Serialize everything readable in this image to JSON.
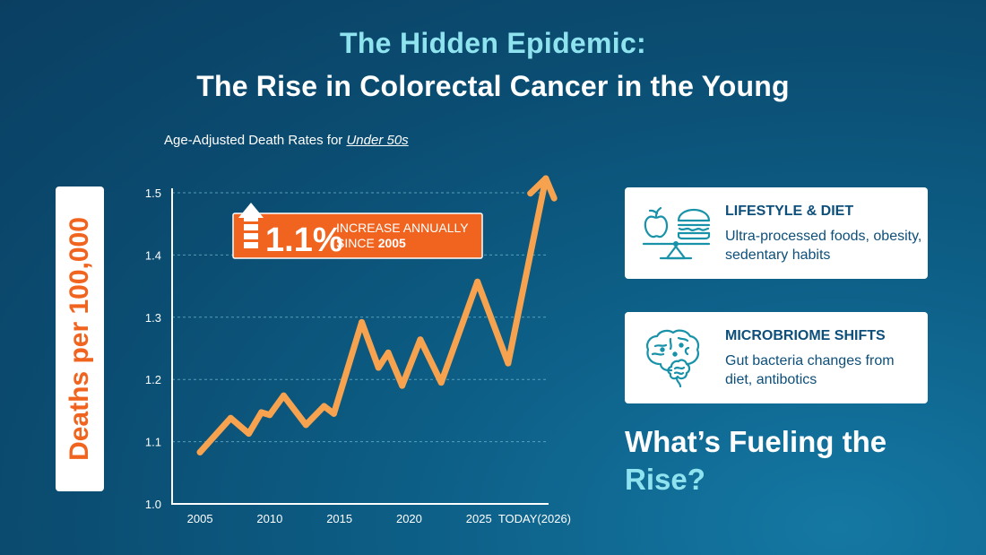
{
  "title": {
    "line1": "The Hidden Epidemic:",
    "line2": "The Rise in Colorectal Cancer in the Young"
  },
  "subtitle": {
    "prefix": "Age-Adjusted Death Rates for ",
    "emphasis": "Under 50s"
  },
  "colors": {
    "accent_orange": "#f0641f",
    "line_orange": "#f7a24e",
    "cyan": "#8fe3ef",
    "card_text": "#0d4f7a",
    "icon_teal": "#1792a8"
  },
  "chart_data": {
    "type": "line",
    "title": "Age-Adjusted Death Rates for Under 50s",
    "xlabel": "",
    "ylabel": "Deaths per 100,000",
    "ylim": [
      1.0,
      1.5
    ],
    "yticks": [
      1.0,
      1.1,
      1.2,
      1.3,
      1.4,
      1.5
    ],
    "ytick_labels": [
      "1.0",
      "1.1",
      "1.2",
      "1.3",
      "1.4",
      "1.5"
    ],
    "xlim": [
      2003,
      2030
    ],
    "xticks": [
      2005,
      2010,
      2015,
      2020,
      2025,
      2029
    ],
    "xtick_labels": [
      "2005",
      "2010",
      "2015",
      "2020",
      "2025",
      "TODAY(2026)"
    ],
    "grid": true,
    "series": [
      {
        "name": "Deaths per 100,000",
        "x": [
          2005,
          2007.2,
          2008.5,
          2009.4,
          2010,
          2011,
          2012.6,
          2013.9,
          2014.6,
          2016.6,
          2017.8,
          2018.5,
          2019.5,
          2020.8,
          2022.3,
          2024.9,
          2027.1,
          2029.8
        ],
        "values": [
          1.083,
          1.138,
          1.113,
          1.147,
          1.143,
          1.174,
          1.127,
          1.157,
          1.145,
          1.292,
          1.219,
          1.243,
          1.19,
          1.264,
          1.195,
          1.357,
          1.226,
          1.523
        ]
      }
    ],
    "annotation": {
      "big_value": "1.1%",
      "line1": "INCREASE ANNUALLY",
      "line2_prefix": "SINCE ",
      "line2_year": "2005"
    }
  },
  "cards": [
    {
      "icon": "apple-burger-scale-icon",
      "title": "LIFESTYLE & DIET",
      "desc": "Ultra-processed foods, obesity, sedentary habits"
    },
    {
      "icon": "brain-gut-icon",
      "title": "MICROBRIOME SHIFTS",
      "desc": "Gut bacteria changes from diet, antibotics"
    }
  ],
  "fueling": {
    "text": "What’s Fueling the ",
    "highlight": "Rise?"
  }
}
